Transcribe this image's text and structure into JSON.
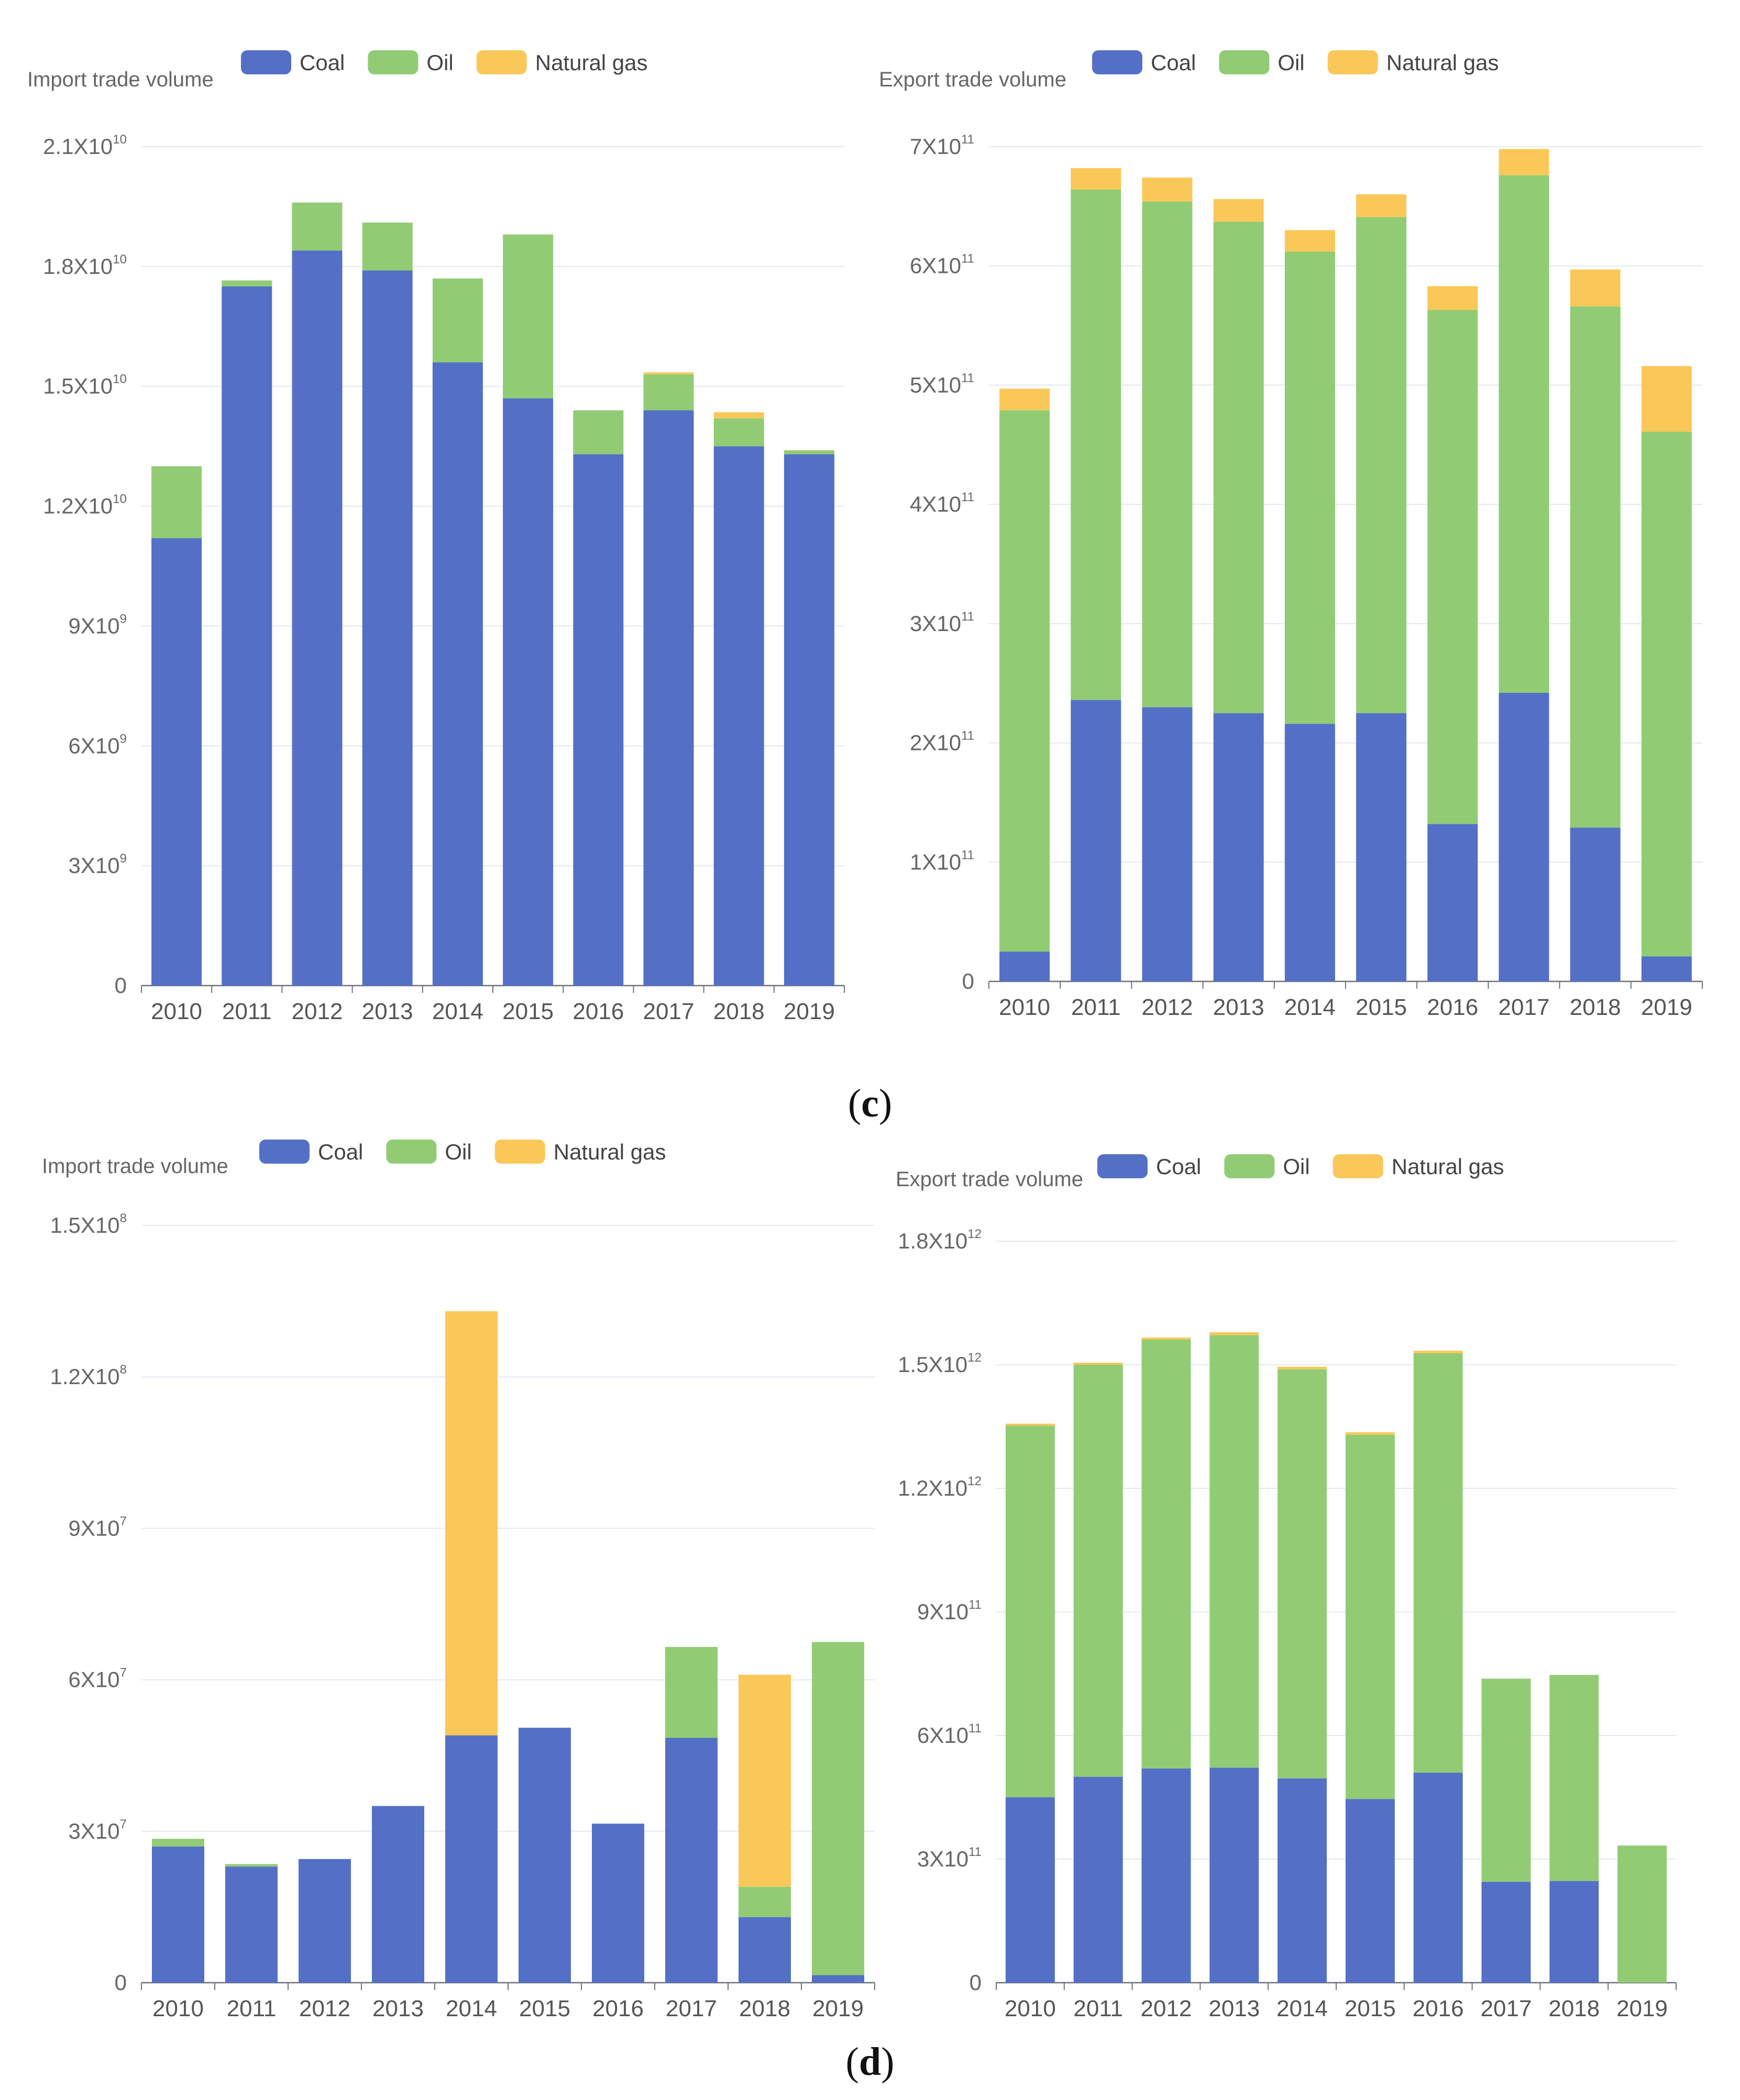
{
  "legend": {
    "coal": "Coal",
    "oil": "Oil",
    "gas": "Natural gas"
  },
  "colors": {
    "coal": "#5470c6",
    "oil": "#91cc75",
    "gas": "#fac858",
    "grid": "#e6e8ef",
    "axis": "#6e7079"
  },
  "captions": {
    "c": {
      "open": "(",
      "letter": "c",
      "close": ")"
    },
    "d": {
      "open": "(",
      "letter": "d",
      "close": ")"
    }
  },
  "chart_data": [
    {
      "id": "c-import",
      "panel": "c",
      "type": "bar",
      "stacked": true,
      "title": "Import trade volume",
      "categories": [
        "2010",
        "2011",
        "2012",
        "2013",
        "2014",
        "2015",
        "2016",
        "2017",
        "2018",
        "2019"
      ],
      "yticks": [
        {
          "value": 0,
          "base": "0",
          "exp": ""
        },
        {
          "value": 3000000000,
          "base": "3X10",
          "exp": "9"
        },
        {
          "value": 6000000000,
          "base": "6X10",
          "exp": "9"
        },
        {
          "value": 9000000000,
          "base": "9X10",
          "exp": "9"
        },
        {
          "value": 12000000000,
          "base": "1.2X10",
          "exp": "10"
        },
        {
          "value": 15000000000,
          "base": "1.5X10",
          "exp": "10"
        },
        {
          "value": 18000000000,
          "base": "1.8X10",
          "exp": "10"
        },
        {
          "value": 21000000000,
          "base": "2.1X10",
          "exp": "10"
        }
      ],
      "ylim": [
        0,
        21000000000
      ],
      "series": [
        {
          "key": "coal",
          "name": "Coal",
          "values": [
            11200000000,
            17500000000,
            18400000000,
            17900000000,
            15600000000,
            14700000000,
            13300000000,
            14400000000,
            13500000000,
            13300000000
          ]
        },
        {
          "key": "oil",
          "name": "Oil",
          "values": [
            1800000000,
            150000000,
            1200000000,
            1200000000,
            2100000000,
            4100000000,
            1100000000,
            900000000,
            700000000,
            100000000
          ]
        },
        {
          "key": "gas",
          "name": "Natural gas",
          "values": [
            0,
            0,
            0,
            0,
            0,
            0,
            0,
            50000000,
            150000000,
            0
          ]
        }
      ]
    },
    {
      "id": "c-export",
      "panel": "c",
      "type": "bar",
      "stacked": true,
      "title": "Export trade volume",
      "categories": [
        "2010",
        "2011",
        "2012",
        "2013",
        "2014",
        "2015",
        "2016",
        "2017",
        "2018",
        "2019"
      ],
      "yticks": [
        {
          "value": 0,
          "base": "0",
          "exp": ""
        },
        {
          "value": 100000000000,
          "base": "1X10",
          "exp": "11"
        },
        {
          "value": 200000000000,
          "base": "2X10",
          "exp": "11"
        },
        {
          "value": 300000000000,
          "base": "3X10",
          "exp": "11"
        },
        {
          "value": 400000000000,
          "base": "4X10",
          "exp": "11"
        },
        {
          "value": 500000000000,
          "base": "5X10",
          "exp": "11"
        },
        {
          "value": 600000000000,
          "base": "6X10",
          "exp": "11"
        },
        {
          "value": 700000000000,
          "base": "7X10",
          "exp": "11"
        }
      ],
      "ylim": [
        0,
        700000000000
      ],
      "series": [
        {
          "key": "coal",
          "name": "Coal",
          "values": [
            25000000000,
            236000000000,
            230000000000,
            225000000000,
            216000000000,
            225000000000,
            132000000000,
            242000000000,
            129000000000,
            21000000000
          ]
        },
        {
          "key": "oil",
          "name": "Oil",
          "values": [
            454000000000,
            428000000000,
            424000000000,
            412000000000,
            396000000000,
            416000000000,
            431000000000,
            434000000000,
            437000000000,
            440000000000
          ]
        },
        {
          "key": "gas",
          "name": "Natural gas",
          "values": [
            18000000000,
            18000000000,
            20000000000,
            19000000000,
            18000000000,
            19000000000,
            20000000000,
            22000000000,
            31000000000,
            55000000000
          ]
        }
      ]
    },
    {
      "id": "d-import",
      "panel": "d",
      "type": "bar",
      "stacked": true,
      "title": "Import trade volume",
      "categories": [
        "2010",
        "2011",
        "2012",
        "2013",
        "2014",
        "2015",
        "2016",
        "2017",
        "2018",
        "2019"
      ],
      "yticks": [
        {
          "value": 0,
          "base": "0",
          "exp": ""
        },
        {
          "value": 30000000,
          "base": "3X10",
          "exp": "7"
        },
        {
          "value": 60000000,
          "base": "6X10",
          "exp": "7"
        },
        {
          "value": 90000000,
          "base": "9X10",
          "exp": "7"
        },
        {
          "value": 120000000,
          "base": "1.2X10",
          "exp": "8"
        },
        {
          "value": 150000000,
          "base": "1.5X10",
          "exp": "8"
        }
      ],
      "ylim": [
        0,
        150000000
      ],
      "series": [
        {
          "key": "coal",
          "name": "Coal",
          "values": [
            27000000,
            23000000,
            24500000,
            35000000,
            49000000,
            50500000,
            31500000,
            48500000,
            13000000,
            1500000
          ]
        },
        {
          "key": "oil",
          "name": "Oil",
          "values": [
            1500000,
            500000,
            0,
            0,
            0,
            0,
            0,
            18000000,
            6000000,
            66000000
          ]
        },
        {
          "key": "gas",
          "name": "Natural gas",
          "values": [
            0,
            0,
            0,
            0,
            84000000,
            0,
            0,
            0,
            42000000,
            0
          ]
        }
      ]
    },
    {
      "id": "d-export",
      "panel": "d",
      "type": "bar",
      "stacked": true,
      "title": "Export trade volume",
      "categories": [
        "2010",
        "2011",
        "2012",
        "2013",
        "2014",
        "2015",
        "2016",
        "2017",
        "2018",
        "2019"
      ],
      "yticks": [
        {
          "value": 0,
          "base": "0",
          "exp": ""
        },
        {
          "value": 300000000000,
          "base": "3X10",
          "exp": "11"
        },
        {
          "value": 600000000000,
          "base": "6X10",
          "exp": "11"
        },
        {
          "value": 900000000000,
          "base": "9X10",
          "exp": "11"
        },
        {
          "value": 1200000000000,
          "base": "1.2X10",
          "exp": "12"
        },
        {
          "value": 1500000000000,
          "base": "1.5X10",
          "exp": "12"
        },
        {
          "value": 1800000000000,
          "base": "1.8X10",
          "exp": "12"
        }
      ],
      "ylim": [
        0,
        1800000000000
      ],
      "series": [
        {
          "key": "coal",
          "name": "Coal",
          "values": [
            450000000000,
            500000000000,
            520000000000,
            522000000000,
            496000000000,
            446000000000,
            510000000000,
            245000000000,
            247000000000,
            0
          ]
        },
        {
          "key": "oil",
          "name": "Oil",
          "values": [
            902000000000,
            1000000000000,
            1041000000000,
            1050000000000,
            993000000000,
            884000000000,
            1018000000000,
            493000000000,
            500000000000,
            333000000000
          ]
        },
        {
          "key": "gas",
          "name": "Natural gas",
          "values": [
            5000000000,
            5000000000,
            5000000000,
            7000000000,
            6000000000,
            6000000000,
            6000000000,
            0,
            0,
            0
          ]
        }
      ]
    }
  ]
}
